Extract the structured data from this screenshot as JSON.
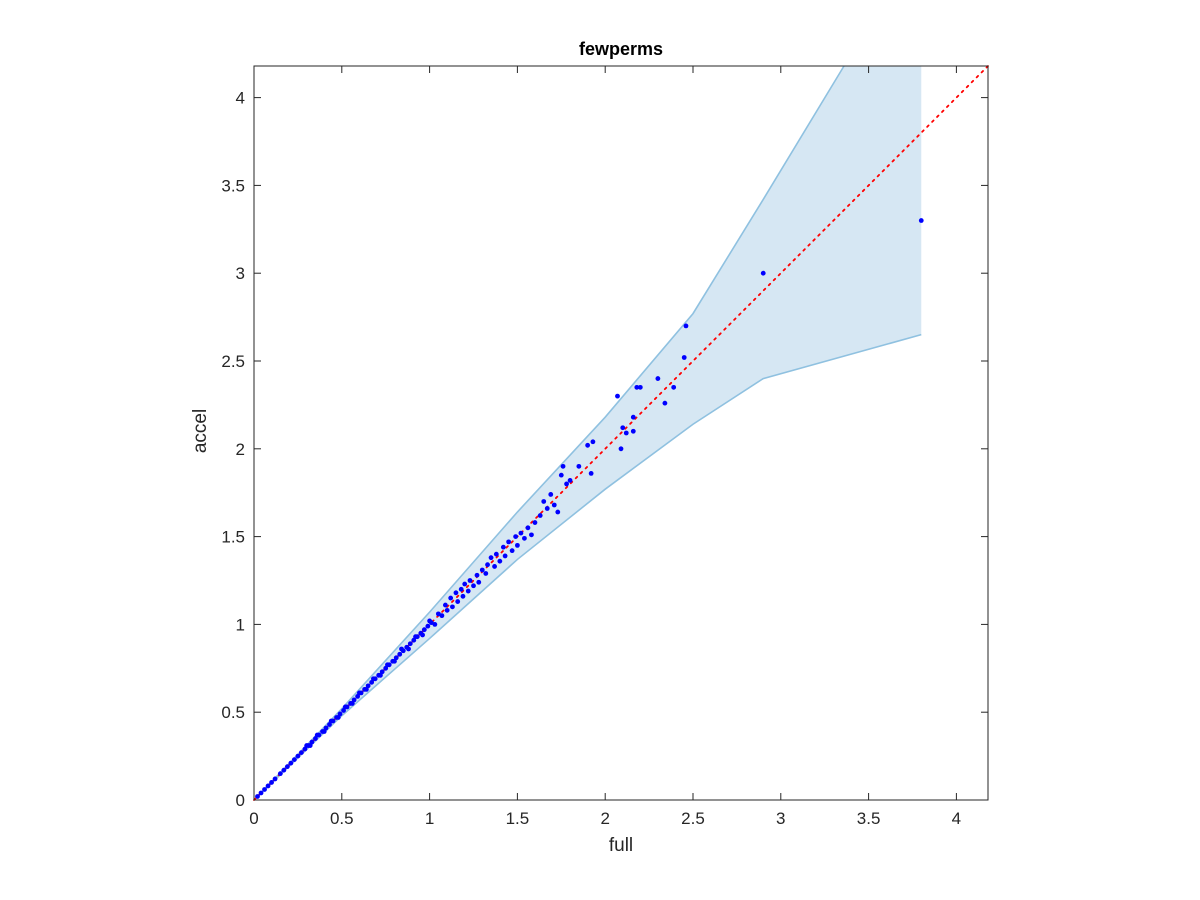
{
  "chart_data": {
    "type": "scatter",
    "title": "fewperms",
    "xlabel": "full",
    "ylabel": "accel",
    "xlim": [
      0,
      4.18
    ],
    "ylim": [
      0,
      4.18
    ],
    "xticks": [
      0,
      0.5,
      1,
      1.5,
      2,
      2.5,
      3,
      3.5,
      4
    ],
    "yticks": [
      0,
      0.5,
      1,
      1.5,
      2,
      2.5,
      3,
      3.5,
      4
    ],
    "xtick_labels": [
      "0",
      "0.5",
      "1",
      "1.5",
      "2",
      "2.5",
      "3",
      "3.5",
      "4"
    ],
    "ytick_labels": [
      "0",
      "0.5",
      "1",
      "1.5",
      "2",
      "2.5",
      "3",
      "3.5",
      "4"
    ],
    "grid": false,
    "colors": {
      "points": "#0000ff",
      "reference": "#ff0000",
      "band_fill": "#d6e7f3",
      "band_edge": "#8fc1e0",
      "axes": "#262626"
    },
    "band": {
      "upper": [
        [
          0,
          0
        ],
        [
          0.5,
          0.52
        ],
        [
          1,
          1.07
        ],
        [
          1.5,
          1.64
        ],
        [
          2,
          2.18
        ],
        [
          2.5,
          2.77
        ],
        [
          2.9,
          3.42
        ],
        [
          3.36,
          4.18
        ],
        [
          3.8,
          4.18
        ]
      ],
      "lower": [
        [
          0,
          0
        ],
        [
          0.5,
          0.48
        ],
        [
          1,
          0.92
        ],
        [
          1.5,
          1.37
        ],
        [
          2,
          1.77
        ],
        [
          2.5,
          2.14
        ],
        [
          2.9,
          2.4
        ],
        [
          3.8,
          2.65
        ]
      ]
    },
    "reference_line": {
      "from": [
        0,
        0
      ],
      "to": [
        4.18,
        4.18
      ]
    },
    "series": [
      {
        "points": [
          [
            0.02,
            0.02
          ],
          [
            0.04,
            0.04
          ],
          [
            0.06,
            0.06
          ],
          [
            0.08,
            0.08
          ],
          [
            0.1,
            0.1
          ],
          [
            0.12,
            0.12
          ],
          [
            0.15,
            0.15
          ],
          [
            0.17,
            0.17
          ],
          [
            0.19,
            0.19
          ],
          [
            0.21,
            0.21
          ],
          [
            0.23,
            0.23
          ],
          [
            0.25,
            0.25
          ],
          [
            0.27,
            0.27
          ],
          [
            0.29,
            0.29
          ],
          [
            0.31,
            0.31
          ],
          [
            0.33,
            0.33
          ],
          [
            0.35,
            0.35
          ],
          [
            0.37,
            0.37
          ],
          [
            0.39,
            0.39
          ],
          [
            0.41,
            0.41
          ],
          [
            0.43,
            0.43
          ],
          [
            0.45,
            0.45
          ],
          [
            0.47,
            0.47
          ],
          [
            0.49,
            0.49
          ],
          [
            0.51,
            0.51
          ],
          [
            0.53,
            0.53
          ],
          [
            0.55,
            0.55
          ],
          [
            0.57,
            0.57
          ],
          [
            0.59,
            0.59
          ],
          [
            0.61,
            0.61
          ],
          [
            0.63,
            0.63
          ],
          [
            0.65,
            0.65
          ],
          [
            0.67,
            0.67
          ],
          [
            0.69,
            0.69
          ],
          [
            0.71,
            0.71
          ],
          [
            0.73,
            0.73
          ],
          [
            0.75,
            0.75
          ],
          [
            0.77,
            0.77
          ],
          [
            0.79,
            0.79
          ],
          [
            0.81,
            0.81
          ],
          [
            0.83,
            0.83
          ],
          [
            0.85,
            0.85
          ],
          [
            0.87,
            0.87
          ],
          [
            0.89,
            0.89
          ],
          [
            0.91,
            0.91
          ],
          [
            0.93,
            0.93
          ],
          [
            0.95,
            0.95
          ],
          [
            0.97,
            0.97
          ],
          [
            0.99,
            0.99
          ],
          [
            1.01,
            1.01
          ],
          [
            0.3,
            0.31
          ],
          [
            0.32,
            0.31
          ],
          [
            0.36,
            0.37
          ],
          [
            0.4,
            0.39
          ],
          [
            0.44,
            0.45
          ],
          [
            0.48,
            0.47
          ],
          [
            0.52,
            0.53
          ],
          [
            0.56,
            0.55
          ],
          [
            0.6,
            0.61
          ],
          [
            0.64,
            0.63
          ],
          [
            0.68,
            0.69
          ],
          [
            0.72,
            0.71
          ],
          [
            0.76,
            0.77
          ],
          [
            0.8,
            0.79
          ],
          [
            0.84,
            0.86
          ],
          [
            0.88,
            0.86
          ],
          [
            0.92,
            0.93
          ],
          [
            0.96,
            0.94
          ],
          [
            1.0,
            1.02
          ],
          [
            1.03,
            1.0
          ],
          [
            1.05,
            1.06
          ],
          [
            1.07,
            1.05
          ],
          [
            1.09,
            1.11
          ],
          [
            1.1,
            1.08
          ],
          [
            1.12,
            1.15
          ],
          [
            1.13,
            1.1
          ],
          [
            1.15,
            1.18
          ],
          [
            1.16,
            1.13
          ],
          [
            1.18,
            1.2
          ],
          [
            1.19,
            1.16
          ],
          [
            1.2,
            1.23
          ],
          [
            1.22,
            1.19
          ],
          [
            1.23,
            1.25
          ],
          [
            1.25,
            1.22
          ],
          [
            1.27,
            1.28
          ],
          [
            1.28,
            1.24
          ],
          [
            1.3,
            1.31
          ],
          [
            1.32,
            1.29
          ],
          [
            1.33,
            1.34
          ],
          [
            1.35,
            1.38
          ],
          [
            1.37,
            1.33
          ],
          [
            1.38,
            1.4
          ],
          [
            1.4,
            1.36
          ],
          [
            1.42,
            1.44
          ],
          [
            1.43,
            1.39
          ],
          [
            1.45,
            1.47
          ],
          [
            1.47,
            1.42
          ],
          [
            1.49,
            1.5
          ],
          [
            1.5,
            1.45
          ],
          [
            1.52,
            1.52
          ],
          [
            1.54,
            1.49
          ],
          [
            1.56,
            1.55
          ],
          [
            1.58,
            1.51
          ],
          [
            1.6,
            1.58
          ],
          [
            1.63,
            1.62
          ],
          [
            1.65,
            1.7
          ],
          [
            1.67,
            1.66
          ],
          [
            1.69,
            1.74
          ],
          [
            1.71,
            1.68
          ],
          [
            1.73,
            1.64
          ],
          [
            1.75,
            1.85
          ],
          [
            1.76,
            1.9
          ],
          [
            1.78,
            1.8
          ],
          [
            1.8,
            1.82
          ],
          [
            1.85,
            1.9
          ],
          [
            1.9,
            2.02
          ],
          [
            1.93,
            2.04
          ],
          [
            1.92,
            1.86
          ],
          [
            2.07,
            2.3
          ],
          [
            2.09,
            2.0
          ],
          [
            2.1,
            2.12
          ],
          [
            2.12,
            2.09
          ],
          [
            2.16,
            2.18
          ],
          [
            2.16,
            2.1
          ],
          [
            2.18,
            2.35
          ],
          [
            2.2,
            2.35
          ],
          [
            2.3,
            2.4
          ],
          [
            2.34,
            2.26
          ],
          [
            2.39,
            2.35
          ],
          [
            2.45,
            2.52
          ],
          [
            2.46,
            2.7
          ],
          [
            2.9,
            3.0
          ],
          [
            3.8,
            3.3
          ]
        ]
      }
    ]
  }
}
